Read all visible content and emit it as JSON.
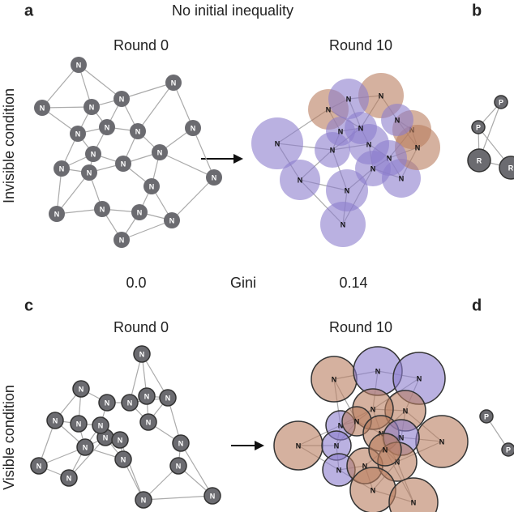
{
  "panels": [
    {
      "letter": "a",
      "title": "No initial inequality",
      "condition": "Invisible condition",
      "left": {
        "title": "Round 0",
        "nodes": [
          "N",
          "N",
          "N",
          "N",
          "N",
          "N",
          "N",
          "N",
          "N",
          "N",
          "N",
          "N",
          "N",
          "N",
          "N",
          "N",
          "N",
          "N",
          "N",
          "N",
          "N"
        ]
      },
      "right": {
        "title": "Round 10",
        "nodes": [
          "N",
          "N",
          "N",
          "N",
          "N",
          "N",
          "N",
          "N",
          "N",
          "N",
          "N",
          "N",
          "N",
          "N",
          "N",
          "N",
          "N"
        ]
      },
      "gini": {
        "left": "0.0",
        "label": "Gini",
        "right": "0.14"
      }
    },
    {
      "letter": "c",
      "condition": "Visible condition",
      "left": {
        "title": "Round 0",
        "nodes": [
          "N",
          "N",
          "N",
          "N",
          "N",
          "N",
          "N",
          "N",
          "N",
          "N",
          "N",
          "N",
          "N",
          "N",
          "N",
          "N",
          "N",
          "N",
          "N",
          "N"
        ]
      },
      "right": {
        "title": "Round 10",
        "nodes": [
          "N",
          "N",
          "N",
          "N",
          "N",
          "N",
          "N",
          "N",
          "N",
          "N",
          "N",
          "N",
          "N",
          "N",
          "N",
          "N",
          "N",
          "N"
        ]
      }
    }
  ],
  "side_panels": [
    {
      "letter": "b",
      "nodes": [
        "P",
        "P",
        "R",
        "R"
      ]
    },
    {
      "letter": "d",
      "nodes": [
        "P",
        "P"
      ]
    }
  ]
}
